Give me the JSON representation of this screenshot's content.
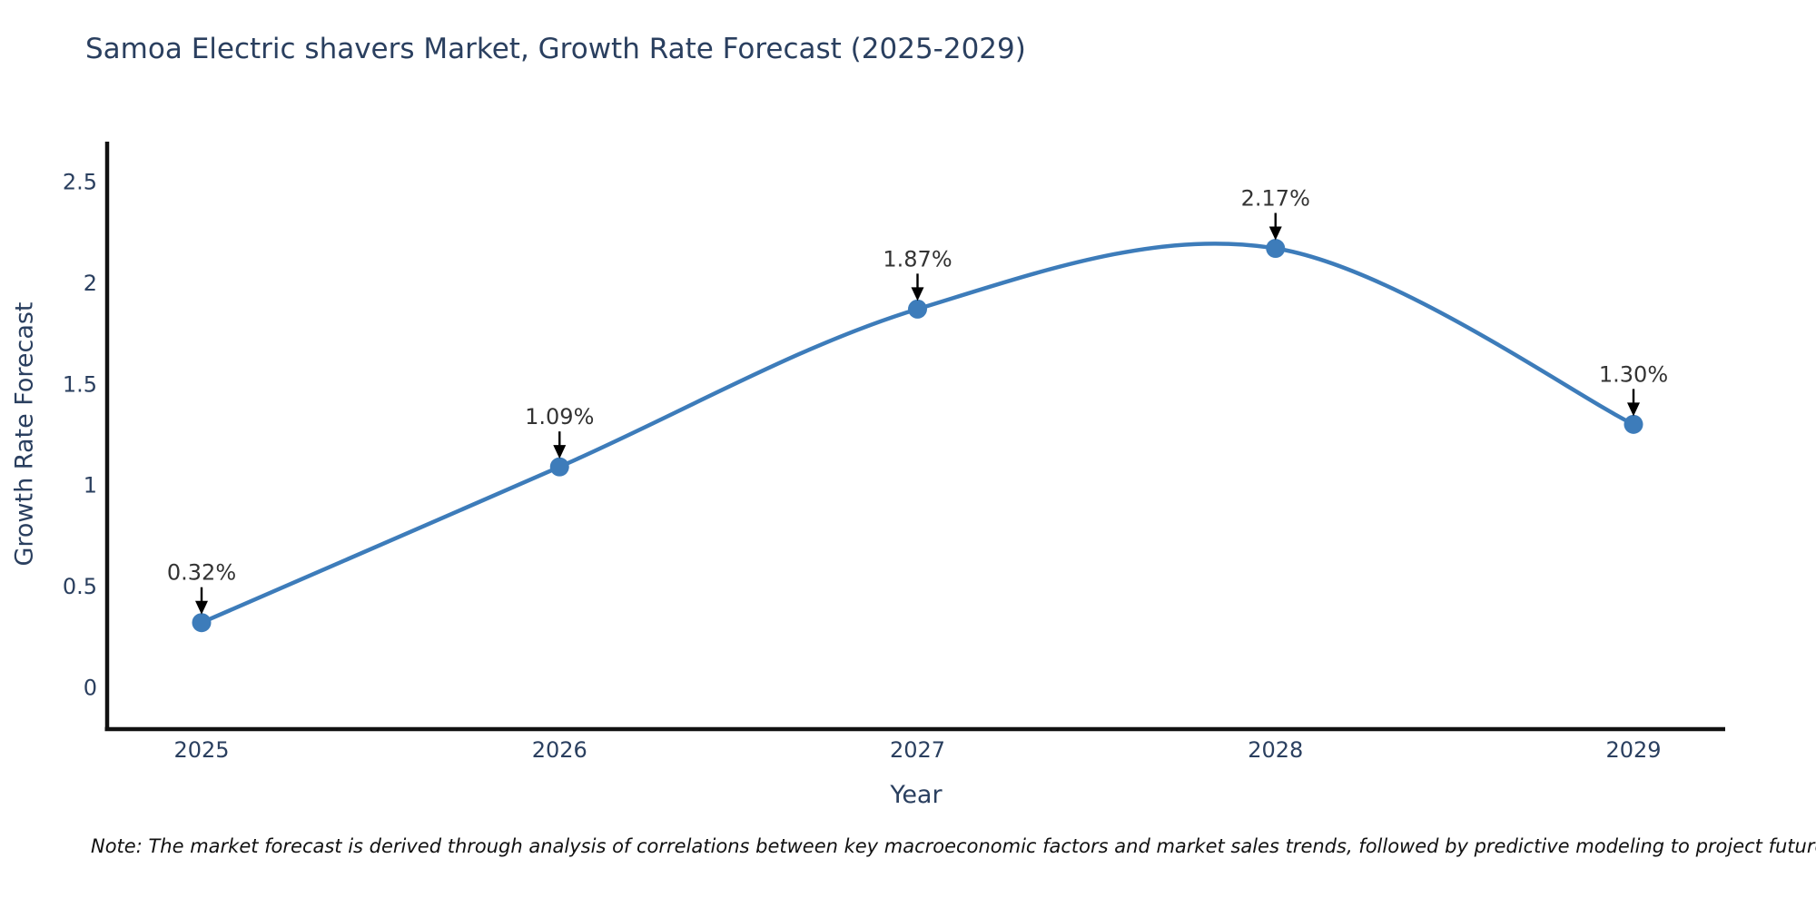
{
  "chart": {
    "footnote": "Note: The market forecast is derived through analysis of correlations between key macroeconomic factors and market sales trends, followed by predictive modeling to project future sales"
  },
  "chart_data": {
    "type": "line",
    "title": "Samoa Electric shavers Market, Growth Rate Forecast (2025-2029)",
    "xlabel": "Year",
    "ylabel": "Growth Rate Forecast",
    "x": [
      2025,
      2026,
      2027,
      2028,
      2029
    ],
    "values": [
      0.32,
      1.09,
      1.87,
      2.17,
      1.3
    ],
    "point_labels": [
      "0.32%",
      "1.09%",
      "1.87%",
      "2.17%",
      "1.30%"
    ],
    "yticks": [
      0,
      0.5,
      1,
      1.5,
      2,
      2.5
    ],
    "ylim": [
      -0.2,
      2.7
    ],
    "grid": false,
    "legend": "none",
    "smooth": true,
    "line_color": "#3d7cba",
    "marker_color": "#3d7cba",
    "arrow_color": "#000000",
    "text_color": "#2a3f5f",
    "label_color": "#333333",
    "axis_color": "#111111"
  }
}
